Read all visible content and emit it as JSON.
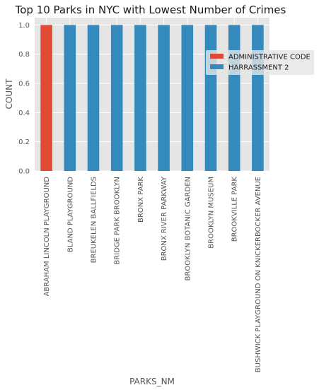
{
  "chart_data": {
    "type": "bar",
    "stacked": true,
    "title": "Top 10 Parks in NYC with Lowest Number of Crimes",
    "xlabel": "PARKS_NM",
    "ylabel": "COUNT",
    "ylim": [
      0,
      1.05
    ],
    "yticks": [
      "0.0",
      "0.2",
      "0.4",
      "0.6",
      "0.8",
      "1.0"
    ],
    "grid": true,
    "legend_position": "right",
    "categories": [
      "ABRAHAM LINCOLN PLAYGROUND",
      "BLAND PLAYGROUND",
      "BREUKELEN BALLFIELDS",
      "BRIDGE PARK BROOKLYN",
      "BRONX PARK",
      "BRONX RIVER PARKWAY",
      "BROOKLYN BOTANIC GARDEN",
      "BROOKLYN MUSEUM",
      "BROOKVILLE PARK",
      "BUSHWICK PLAYGROUND ON KNICKERBOCKER AVENUE"
    ],
    "series": [
      {
        "name": "ADMINISTRATIVE CODE",
        "color": "#E24A33",
        "values": [
          1,
          0,
          0,
          0,
          0,
          0,
          0,
          0,
          0,
          0
        ]
      },
      {
        "name": "HARRASSMENT 2",
        "color": "#348ABD",
        "values": [
          0,
          1,
          1,
          1,
          1,
          1,
          1,
          1,
          1,
          1
        ]
      }
    ]
  }
}
